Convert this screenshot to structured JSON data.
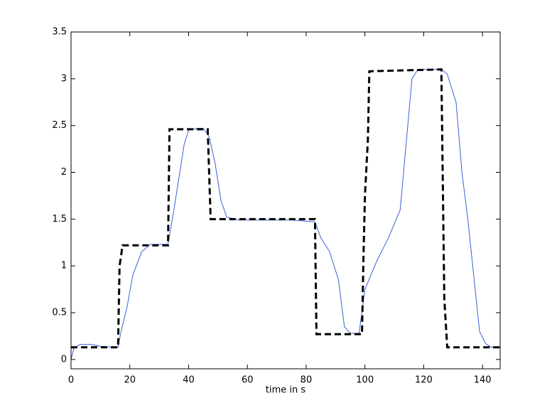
{
  "chart_data": {
    "type": "line",
    "xlabel": "time in s",
    "xlim": [
      0,
      146
    ],
    "ylim": [
      -0.1,
      3.5
    ],
    "xticks": [
      0,
      20,
      40,
      60,
      80,
      100,
      120,
      140
    ],
    "yticks": [
      0,
      0.5,
      1,
      1.5,
      2,
      2.5,
      3,
      3.5
    ],
    "series": [
      {
        "color": "#3a5fd9",
        "linestyle": "solid",
        "width": 1,
        "x": [
          0,
          1,
          3,
          7,
          10,
          16,
          17,
          19,
          21,
          24,
          27,
          33,
          35,
          37,
          38.5,
          40,
          43,
          45,
          47,
          49,
          51,
          53,
          57,
          75,
          83,
          85,
          88,
          91,
          93,
          95,
          98,
          100,
          104,
          108,
          112,
          114,
          116,
          118,
          126,
          128,
          131,
          133,
          135,
          137,
          139,
          141,
          143,
          146
        ],
        "values": [
          0,
          0.12,
          0.16,
          0.16,
          0.14,
          0.13,
          0.3,
          0.55,
          0.9,
          1.15,
          1.23,
          1.23,
          1.6,
          2.0,
          2.3,
          2.45,
          2.47,
          2.47,
          2.38,
          2.1,
          1.7,
          1.52,
          1.49,
          1.49,
          1.47,
          1.3,
          1.15,
          0.85,
          0.35,
          0.28,
          0.28,
          0.75,
          1.05,
          1.3,
          1.6,
          2.3,
          3.0,
          3.1,
          3.1,
          3.05,
          2.75,
          2.0,
          1.5,
          0.9,
          0.3,
          0.17,
          0.13,
          0.13
        ]
      },
      {
        "color": "#000000",
        "linestyle": "dashed",
        "width": 3,
        "x": [
          0,
          16,
          16.5,
          17,
          17.5,
          33,
          33.5,
          46.5,
          47.5,
          83,
          83.5,
          99,
          99.5,
          100,
          101,
          101.5,
          126,
          127,
          128,
          146
        ],
        "values": [
          0.13,
          0.13,
          1.0,
          1.1,
          1.22,
          1.22,
          2.46,
          2.46,
          1.5,
          1.5,
          0.27,
          0.27,
          1.1,
          1.75,
          2.35,
          3.08,
          3.1,
          0.65,
          0.13,
          0.13
        ]
      }
    ]
  }
}
